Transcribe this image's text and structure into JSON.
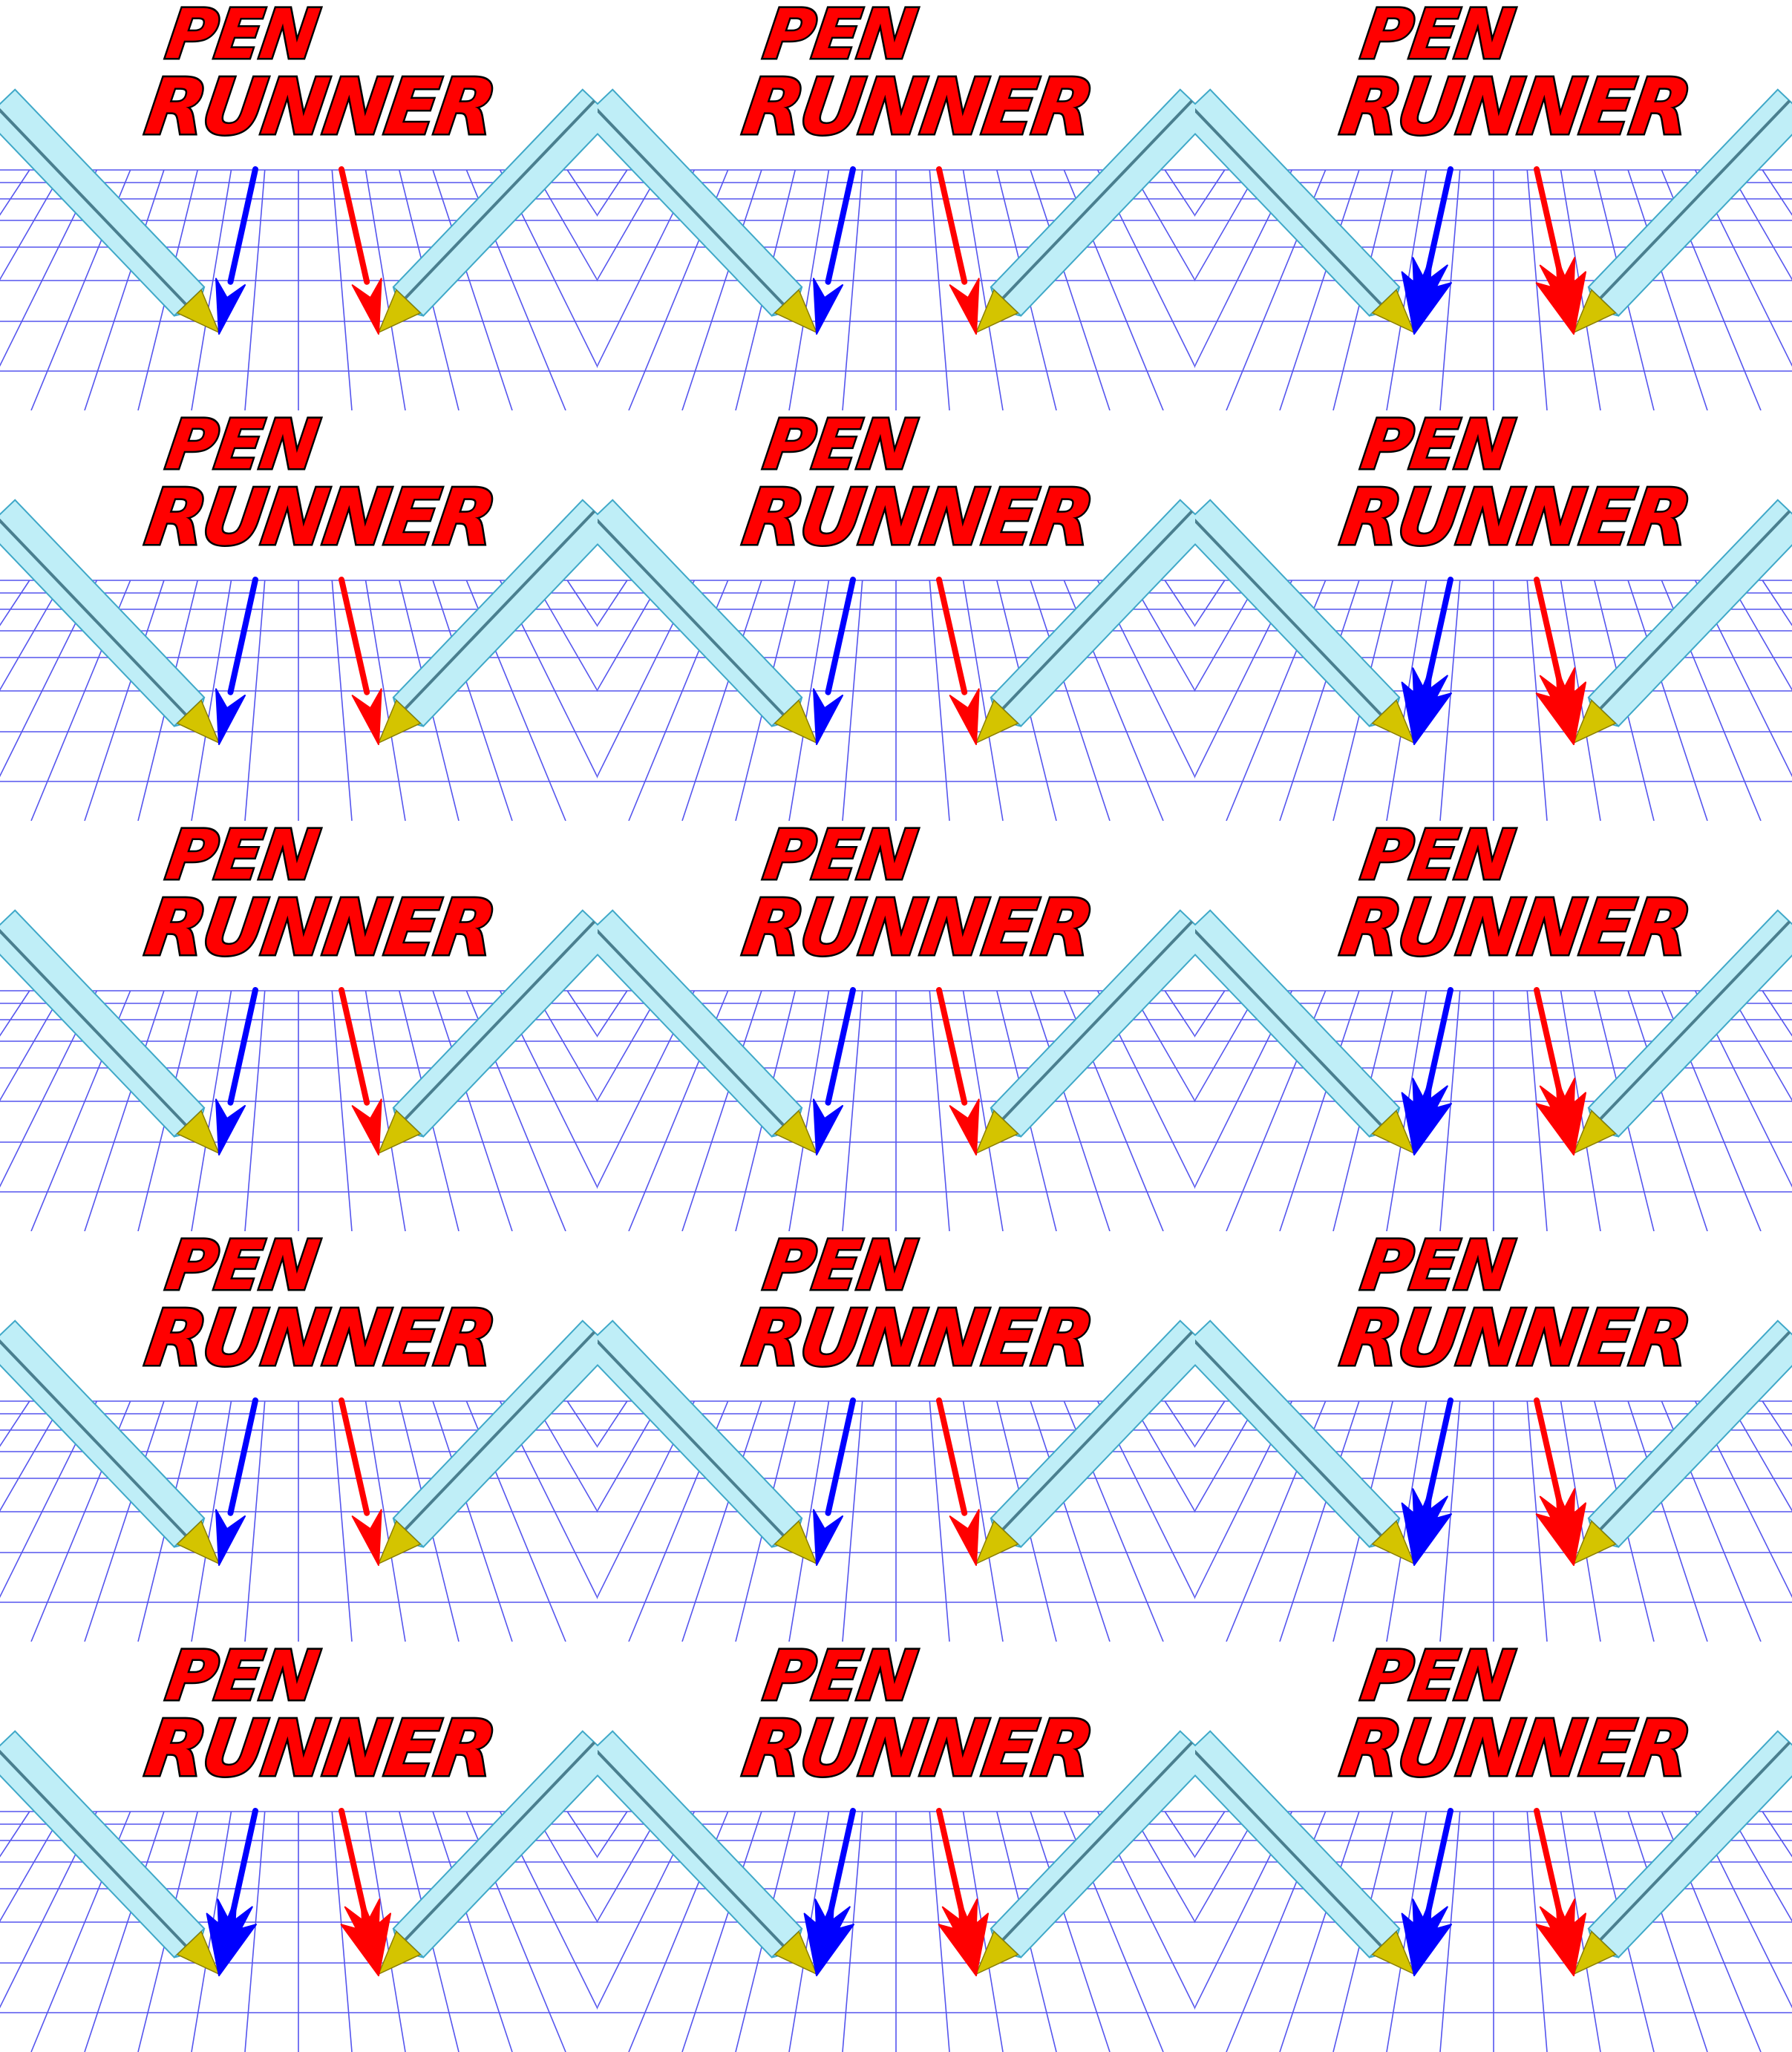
{
  "sheet": {
    "columns": 3,
    "rows": 5,
    "background": "#ffffff"
  },
  "logo": {
    "line1": "PEN",
    "line2": "RUNNER",
    "fill_color": "#ff0000",
    "outline_color": "#000000"
  },
  "colors": {
    "grid": "#5555ee",
    "pen_body": "#bfeef7",
    "pen_edge": "#3fa8c8",
    "pen_tip": "#d4c400",
    "blue_arrow": "#0000ff",
    "red_arrow": "#ff0000"
  },
  "frames": [
    {
      "arrowhead": "simple"
    },
    {
      "arrowhead": "simple"
    },
    {
      "arrowhead": "burst"
    },
    {
      "arrowhead": "simple"
    },
    {
      "arrowhead": "simple"
    },
    {
      "arrowhead": "burst"
    },
    {
      "arrowhead": "simple"
    },
    {
      "arrowhead": "simple"
    },
    {
      "arrowhead": "burst"
    },
    {
      "arrowhead": "simple"
    },
    {
      "arrowhead": "simple"
    },
    {
      "arrowhead": "burst"
    },
    {
      "arrowhead": "burst"
    },
    {
      "arrowhead": "burst"
    },
    {
      "arrowhead": "burst"
    }
  ]
}
